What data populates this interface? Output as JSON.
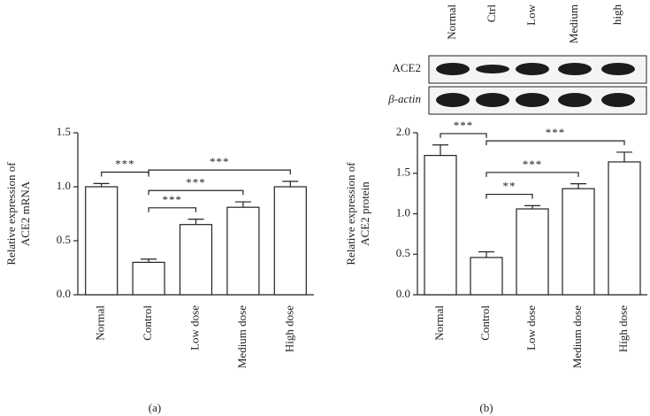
{
  "chart_data": [
    {
      "type": "bar",
      "caption": "(a)",
      "ylabel": [
        "Relative expression of",
        "ACE2 mRNA"
      ],
      "categories": [
        "Normal",
        "Control",
        "Low dose",
        "Medium dose",
        "High dose"
      ],
      "values": [
        1.0,
        0.3,
        0.65,
        0.81,
        1.0
      ],
      "errors": [
        0.03,
        0.03,
        0.05,
        0.05,
        0.05
      ],
      "color": "#ffffff",
      "ylim": [
        0,
        1.5
      ],
      "yticks": [
        {
          "value": 0,
          "label": "0.0"
        },
        0.5,
        {
          "value": 1,
          "label": "1.0"
        },
        1.5
      ],
      "annotations": [
        {
          "label": "***",
          "between": [
            "Normal",
            "Control"
          ]
        },
        {
          "label": "***",
          "between": [
            "Control",
            "High dose"
          ]
        },
        {
          "label": "***",
          "between": [
            "Control",
            "Medium dose"
          ]
        },
        {
          "label": "***",
          "between": [
            "Control",
            "Low dose"
          ]
        }
      ]
    },
    {
      "type": "bar",
      "caption": "(b)",
      "ylabel": [
        "Relative expression of",
        "ACE2 protein"
      ],
      "categories": [
        "Normal",
        "Control",
        "Low dose",
        "Medium dose",
        "High dose"
      ],
      "values": [
        1.72,
        0.46,
        1.06,
        1.31,
        1.64
      ],
      "errors": [
        0.13,
        0.07,
        0.04,
        0.06,
        0.12
      ],
      "color": "#ffffff",
      "ylim": [
        0,
        2
      ],
      "yticks": [
        {
          "value": 0,
          "label": "0.0"
        },
        0.5,
        {
          "value": 1,
          "label": "1.0"
        },
        1.5,
        {
          "value": 2,
          "label": "2.0"
        }
      ],
      "annotations": [
        {
          "label": "***",
          "between": [
            "Normal",
            "Control"
          ]
        },
        {
          "label": "***",
          "between": [
            "Control",
            "High dose"
          ]
        },
        {
          "label": "***",
          "between": [
            "Control",
            "Medium dose"
          ]
        },
        {
          "label": "**",
          "between": [
            "Control",
            "Low dose"
          ]
        }
      ]
    }
  ],
  "blot": {
    "lanes": [
      "Normal",
      "Ctrl",
      "Low",
      "Medium",
      "high"
    ],
    "rows": [
      "ACE2",
      "β-actin"
    ]
  }
}
